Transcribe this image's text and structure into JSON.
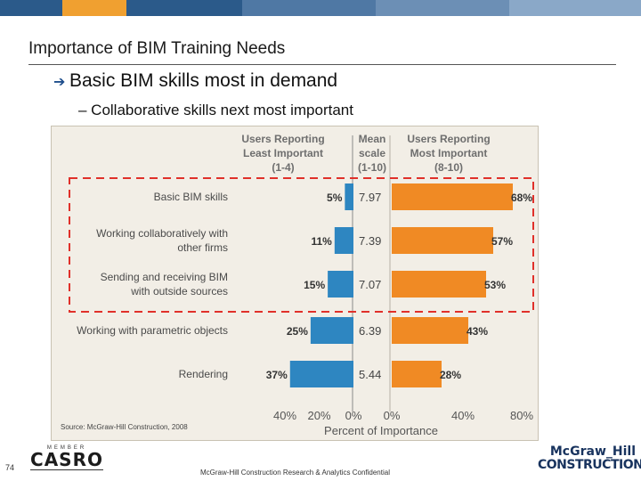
{
  "slide": {
    "title": "Importance of BIM Training Needs",
    "bullet_main": "Basic BIM skills most in demand",
    "bullet_sub": "– Collaborative skills next most important"
  },
  "header_colors": [
    "#2b5a8a",
    "#f0a030",
    "#2b5a8a",
    "#4f78a4",
    "#6c8fb5",
    "#8aa8c8"
  ],
  "chart_data": {
    "type": "bar",
    "left_header": [
      "Users Reporting",
      "Least Important",
      "(1-4)"
    ],
    "mean_header": [
      "Mean",
      "scale",
      "(1-10)"
    ],
    "right_header": [
      "Users Reporting",
      "Most Important",
      "(8-10)"
    ],
    "categories": [
      [
        "Basic BIM skills"
      ],
      [
        "Working collaboratively with",
        "other firms"
      ],
      [
        "Sending and receiving BIM",
        "with outside sources"
      ],
      [
        "Working with parametric objects"
      ],
      [
        "Rendering"
      ]
    ],
    "series": [
      {
        "name": "Users Reporting Least Important (1-4)",
        "color": "#2e86c1",
        "values": [
          5,
          11,
          15,
          25,
          37
        ]
      },
      {
        "name": "Users Reporting Most Important (8-10)",
        "color": "#f08a24",
        "values": [
          68,
          57,
          53,
          43,
          28
        ]
      }
    ],
    "mean_scale": [
      "7.97",
      "7.39",
      "7.07",
      "6.39",
      "5.44"
    ],
    "left_ticks": [
      "40%",
      "20%",
      "0%"
    ],
    "right_ticks": [
      "0%",
      "40%",
      "80%"
    ],
    "left_xlim": [
      0,
      40
    ],
    "right_xlim": [
      0,
      80
    ],
    "xlabel": "Percent of Importance",
    "source": "Source: McGraw-Hill Construction, 2008",
    "highlight_rows": 3,
    "highlight_color": "#e0302a"
  },
  "footer": {
    "page_number": "74",
    "casro_top": "MEMBER",
    "casro_name": "CASRO",
    "confidential": "McGraw-Hill Construction Research & Analytics Confidential",
    "logo_line1": "McGraw_Hill",
    "logo_line2": "CONSTRUCTION"
  }
}
